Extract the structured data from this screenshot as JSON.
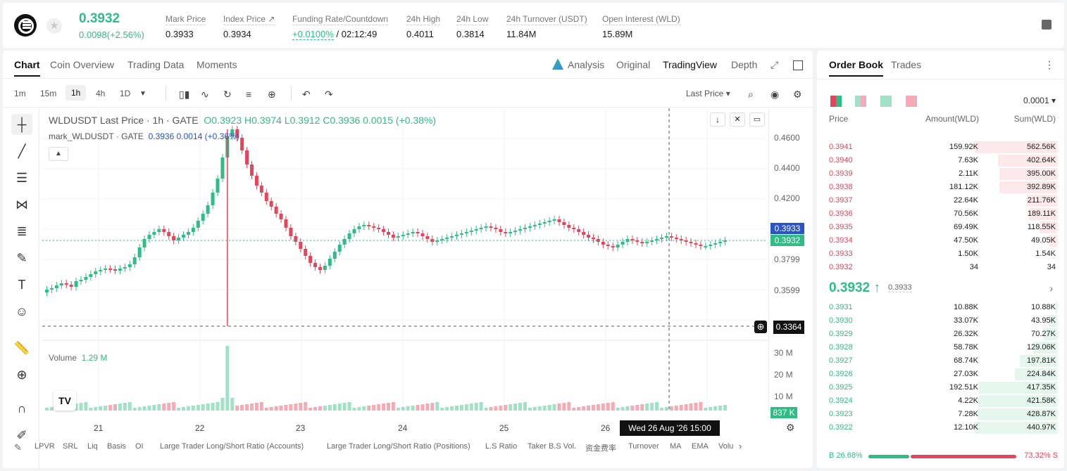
{
  "header": {
    "price": "0.3932",
    "change": "0.0098(+2.56%)",
    "stats": [
      {
        "label": "Mark Price",
        "value": "0.3933"
      },
      {
        "label": "Index Price ↗",
        "value": "0.3934"
      },
      {
        "label": "Funding Rate/Countdown",
        "rate": "+0.0100%",
        "countdown": "/ 02:12:49"
      },
      {
        "label": "24h High",
        "value": "0.4011"
      },
      {
        "label": "24h Low",
        "value": "0.3814"
      },
      {
        "label": "24h Turnover (USDT)",
        "value": "11.84M"
      },
      {
        "label": "Open Interest (WLD)",
        "value": "15.89M"
      }
    ]
  },
  "tabs": {
    "left": [
      "Chart",
      "Coin Overview",
      "Trading Data",
      "Moments"
    ],
    "right": [
      "Analysis",
      "Original",
      "TradingView",
      "Depth"
    ]
  },
  "toolbar": {
    "timeframes": [
      "1m",
      "15m",
      "1h",
      "4h",
      "1D"
    ],
    "price_type": "Last Price ▾"
  },
  "chart": {
    "legend_title": "WLDUSDT Last Price · 1h · GATE",
    "legend_ohlc": "O0.3923 H0.3974 L0.3912 C0.3936 0.0015 (+0.38%)",
    "legend_mark": "mark_WLDUSDT · GATE",
    "legend_mark_values": "0.3936 0.0014 (+0.36%)",
    "y_ticks": [
      "0.4600",
      "0.4400",
      "0.4200",
      "0.3799",
      "0.3599"
    ],
    "mark_label": "0.3933",
    "last_label": "0.3932",
    "cross_label": "0.3364",
    "volume_label": "Volume",
    "volume_value": "1.29 M",
    "volume_ticks": [
      "30 M",
      "20 M",
      "10 M"
    ],
    "volume_badge": "837 K",
    "x_ticks": [
      "21",
      "22",
      "23",
      "24",
      "25",
      "26"
    ],
    "crosshair_time": "Wed 26 Aug '26   15:00",
    "tv_logo": "TV"
  },
  "bottom_indicators": [
    "LPVR",
    "SRL",
    "Liq",
    "Basis",
    "OI",
    "Large Trader Long/Short Ratio (Accounts)",
    "Large Trader Long/Short Ratio (Positions)",
    "L.S Ratio",
    "Taker B.S Vol.",
    "资金费率",
    "Turnover",
    "MA",
    "EMA",
    "Volu"
  ],
  "orderbook": {
    "tabs": [
      "Order Book",
      "Trades"
    ],
    "step": "0.0001 ▾",
    "headers": [
      "Price",
      "Amount(WLD)",
      "Sum(WLD)"
    ],
    "asks": [
      {
        "price": "0.3941",
        "amount": "159.92K",
        "sum": "562.56K",
        "depth": 1.0
      },
      {
        "price": "0.3940",
        "amount": "7.63K",
        "sum": "402.64K",
        "depth": 0.72
      },
      {
        "price": "0.3939",
        "amount": "2.11K",
        "sum": "395.00K",
        "depth": 0.7
      },
      {
        "price": "0.3938",
        "amount": "181.12K",
        "sum": "392.89K",
        "depth": 0.7
      },
      {
        "price": "0.3937",
        "amount": "22.64K",
        "sum": "211.76K",
        "depth": 0.38
      },
      {
        "price": "0.3936",
        "amount": "70.56K",
        "sum": "189.11K",
        "depth": 0.34
      },
      {
        "price": "0.3935",
        "amount": "69.49K",
        "sum": "118.55K",
        "depth": 0.21
      },
      {
        "price": "0.3934",
        "amount": "47.50K",
        "sum": "49.05K",
        "depth": 0.09
      },
      {
        "price": "0.3933",
        "amount": "1.50K",
        "sum": "1.54K",
        "depth": 0.0
      },
      {
        "price": "0.3932",
        "amount": "34",
        "sum": "34",
        "depth": 0.0
      }
    ],
    "mid_price": "0.3932 ↑",
    "mid_mark": "0.3933",
    "bids": [
      {
        "price": "0.3931",
        "amount": "10.88K",
        "sum": "10.88K",
        "depth": 0.02
      },
      {
        "price": "0.3930",
        "amount": "33.07K",
        "sum": "43.95K",
        "depth": 0.1
      },
      {
        "price": "0.3929",
        "amount": "26.32K",
        "sum": "70.27K",
        "depth": 0.16
      },
      {
        "price": "0.3928",
        "amount": "58.78K",
        "sum": "129.06K",
        "depth": 0.29
      },
      {
        "price": "0.3927",
        "amount": "68.74K",
        "sum": "197.81K",
        "depth": 0.45
      },
      {
        "price": "0.3926",
        "amount": "27.03K",
        "sum": "224.84K",
        "depth": 0.51
      },
      {
        "price": "0.3925",
        "amount": "192.51K",
        "sum": "417.35K",
        "depth": 0.95
      },
      {
        "price": "0.3924",
        "amount": "4.22K",
        "sum": "421.58K",
        "depth": 0.96
      },
      {
        "price": "0.3923",
        "amount": "7.28K",
        "sum": "428.87K",
        "depth": 0.97
      },
      {
        "price": "0.3922",
        "amount": "12.10K",
        "sum": "440.97K",
        "depth": 1.0
      }
    ],
    "buy_ratio": "B 26.68%",
    "sell_ratio": "73.32% S"
  },
  "colors": {
    "up": "#2ebd85",
    "down": "#e5455b",
    "mark": "#2755c9"
  }
}
